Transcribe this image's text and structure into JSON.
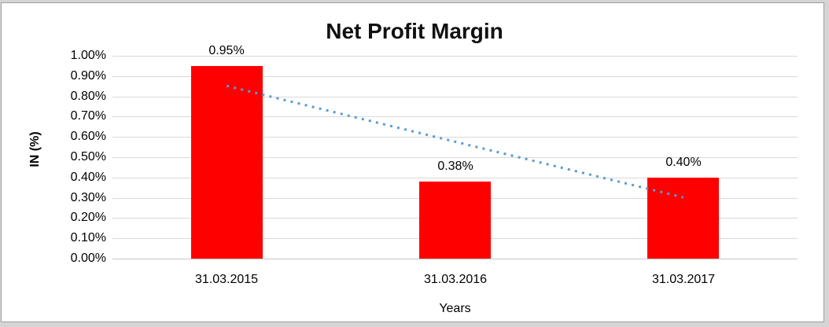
{
  "frame": {
    "background_color": "#d5d5d5",
    "border_color": "#9e9e9e",
    "chart_background_color": "#ffffff"
  },
  "chart_data": {
    "type": "bar",
    "title": "Net Profit Margin",
    "xlabel": "Years",
    "ylabel": "IN (%)",
    "categories": [
      "31.03.2015",
      "31.03.2016",
      "31.03.2017"
    ],
    "values": [
      0.95,
      0.38,
      0.4
    ],
    "data_labels": [
      "0.95%",
      "0.38%",
      "0.40%"
    ],
    "ylim": [
      0,
      1.0
    ],
    "ytick_step": 0.1,
    "ytick_labels": [
      "0.00%",
      "0.10%",
      "0.20%",
      "0.30%",
      "0.40%",
      "0.50%",
      "0.60%",
      "0.70%",
      "0.80%",
      "0.90%",
      "1.00%"
    ],
    "grid": true,
    "legend_position": "none",
    "bar_color": "#ff0000",
    "gridline_color": "#d9d9d9",
    "axis_line_color": "#c6c6c6",
    "text_color": "#000000",
    "trendline": {
      "type": "linear",
      "style": "dotted",
      "color": "#5b9bd5",
      "start_value": 0.8517,
      "end_value": 0.3017
    }
  }
}
